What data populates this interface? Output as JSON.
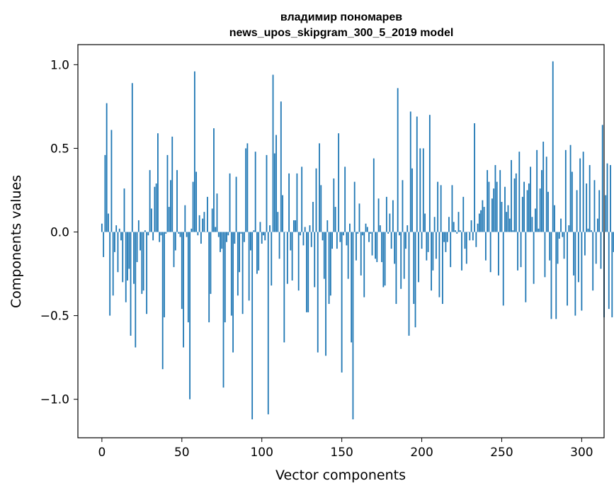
{
  "chart_data": {
    "type": "bar",
    "title_line1": "владимир пономарев",
    "title_line2": "news_upos_skipgram_300_5_2019 model",
    "xlabel": "Vector components",
    "ylabel": "Components values",
    "xlim": [
      -15,
      314
    ],
    "ylim": [
      -1.23,
      1.12
    ],
    "xticks": [
      0,
      50,
      100,
      150,
      200,
      250,
      300
    ],
    "xtick_labels": [
      "0",
      "50",
      "100",
      "150",
      "200",
      "250",
      "300"
    ],
    "yticks": [
      -1.0,
      -0.5,
      0.0,
      0.5,
      1.0
    ],
    "ytick_labels": [
      "−1.0",
      "−0.5",
      "0.0",
      "0.5",
      "1.0"
    ],
    "bar_color": "#1f77b4",
    "x_start": 0,
    "values": [
      0.05,
      -0.15,
      0.46,
      0.77,
      0.11,
      -0.5,
      0.61,
      -0.38,
      -0.12,
      0.04,
      -0.24,
      0.02,
      -0.05,
      -0.3,
      0.26,
      -0.42,
      -0.29,
      -0.22,
      -0.62,
      0.89,
      -0.31,
      -0.69,
      -0.18,
      0.07,
      -0.11,
      -0.37,
      -0.35,
      0.01,
      -0.49,
      -0.02,
      0.37,
      0.14,
      -0.05,
      0.27,
      0.29,
      0.59,
      -0.06,
      -0.02,
      -0.82,
      -0.51,
      -0.01,
      0.46,
      0.15,
      0.31,
      0.57,
      -0.21,
      -0.11,
      0.37,
      -0.01,
      -0.03,
      -0.46,
      -0.69,
      0.16,
      -0.03,
      -0.54,
      -1.0,
      0.02,
      0.3,
      0.96,
      0.36,
      -0.02,
      0.1,
      -0.07,
      0.08,
      0.12,
      0.0,
      0.21,
      -0.54,
      -0.37,
      0.14,
      0.62,
      0.03,
      0.23,
      -0.03,
      -0.12,
      -0.1,
      -0.93,
      -0.54,
      -0.06,
      -0.02,
      0.35,
      -0.5,
      -0.72,
      -0.07,
      0.33,
      -0.38,
      -0.24,
      -0.01,
      -0.49,
      -0.06,
      0.5,
      0.53,
      -0.41,
      -0.11,
      -1.12,
      0.01,
      0.48,
      -0.25,
      -0.23,
      0.06,
      -0.07,
      -0.02,
      -0.05,
      0.46,
      -1.09,
      0.04,
      -0.32,
      0.94,
      0.47,
      0.58,
      0.12,
      -0.16,
      0.78,
      0.22,
      -0.66,
      0.0,
      -0.31,
      0.35,
      -0.11,
      -0.29,
      0.07,
      0.07,
      0.35,
      -0.35,
      -0.02,
      0.39,
      -0.08,
      0.03,
      -0.48,
      -0.48,
      0.04,
      -0.09,
      0.18,
      -0.33,
      0.38,
      -0.72,
      0.53,
      0.28,
      -0.05,
      -0.28,
      -0.74,
      0.07,
      -0.43,
      -0.38,
      -0.1,
      0.32,
      0.15,
      -0.1,
      0.59,
      -0.06,
      -0.84,
      -0.02,
      0.39,
      -0.08,
      -0.28,
      0.05,
      -0.66,
      -1.12,
      0.3,
      -0.17,
      -0.01,
      0.17,
      -0.26,
      -0.02,
      -0.39,
      0.05,
      0.03,
      -0.06,
      -0.01,
      -0.14,
      0.44,
      -0.16,
      -0.18,
      0.2,
      0.04,
      -0.18,
      -0.33,
      -0.32,
      0.21,
      -0.01,
      0.11,
      -0.1,
      0.19,
      -0.19,
      -0.43,
      0.86,
      -0.02,
      -0.34,
      0.31,
      -0.28,
      -0.1,
      0.04,
      -0.62,
      0.72,
      0.38,
      -0.43,
      -0.57,
      0.69,
      -0.3,
      0.5,
      -0.1,
      0.5,
      0.11,
      -0.17,
      -0.12,
      0.7,
      -0.35,
      -0.23,
      0.09,
      -0.16,
      0.3,
      -0.39,
      0.28,
      -0.43,
      -0.06,
      -0.12,
      -0.06,
      0.09,
      -0.21,
      0.28,
      0.06,
      0.01,
      -0.01,
      0.12,
      0.01,
      -0.23,
      0.21,
      -0.1,
      -0.19,
      0.0,
      -0.05,
      0.07,
      -0.05,
      0.65,
      -0.09,
      0.05,
      0.11,
      0.13,
      0.19,
      0.15,
      -0.17,
      0.37,
      0.3,
      -0.24,
      0.2,
      0.26,
      0.4,
      0.3,
      -0.26,
      0.37,
      0.18,
      -0.44,
      0.27,
      0.12,
      0.16,
      0.08,
      0.43,
      0.01,
      0.32,
      0.35,
      -0.23,
      0.48,
      -0.21,
      0.21,
      0.3,
      -0.42,
      0.25,
      0.29,
      0.39,
      0.09,
      -0.31,
      0.14,
      0.49,
      0.02,
      0.26,
      0.37,
      0.54,
      -0.27,
      0.45,
      0.24,
      -0.17,
      -0.52,
      1.02,
      0.16,
      -0.52,
      -0.19,
      -0.04,
      0.08,
      -0.03,
      -0.16,
      0.49,
      -0.44,
      0.04,
      0.52,
      0.36,
      -0.26,
      -0.5,
      0.25,
      -0.3,
      0.44,
      -0.47,
      0.48,
      -0.14,
      0.29,
      0.02,
      0.4,
      0.01,
      -0.35,
      0.31,
      -0.19,
      0.08,
      0.25,
      -0.22,
      0.64,
      -0.51,
      0.22,
      0.41,
      -0.46,
      0.4,
      -0.51,
      -0.12
    ]
  }
}
